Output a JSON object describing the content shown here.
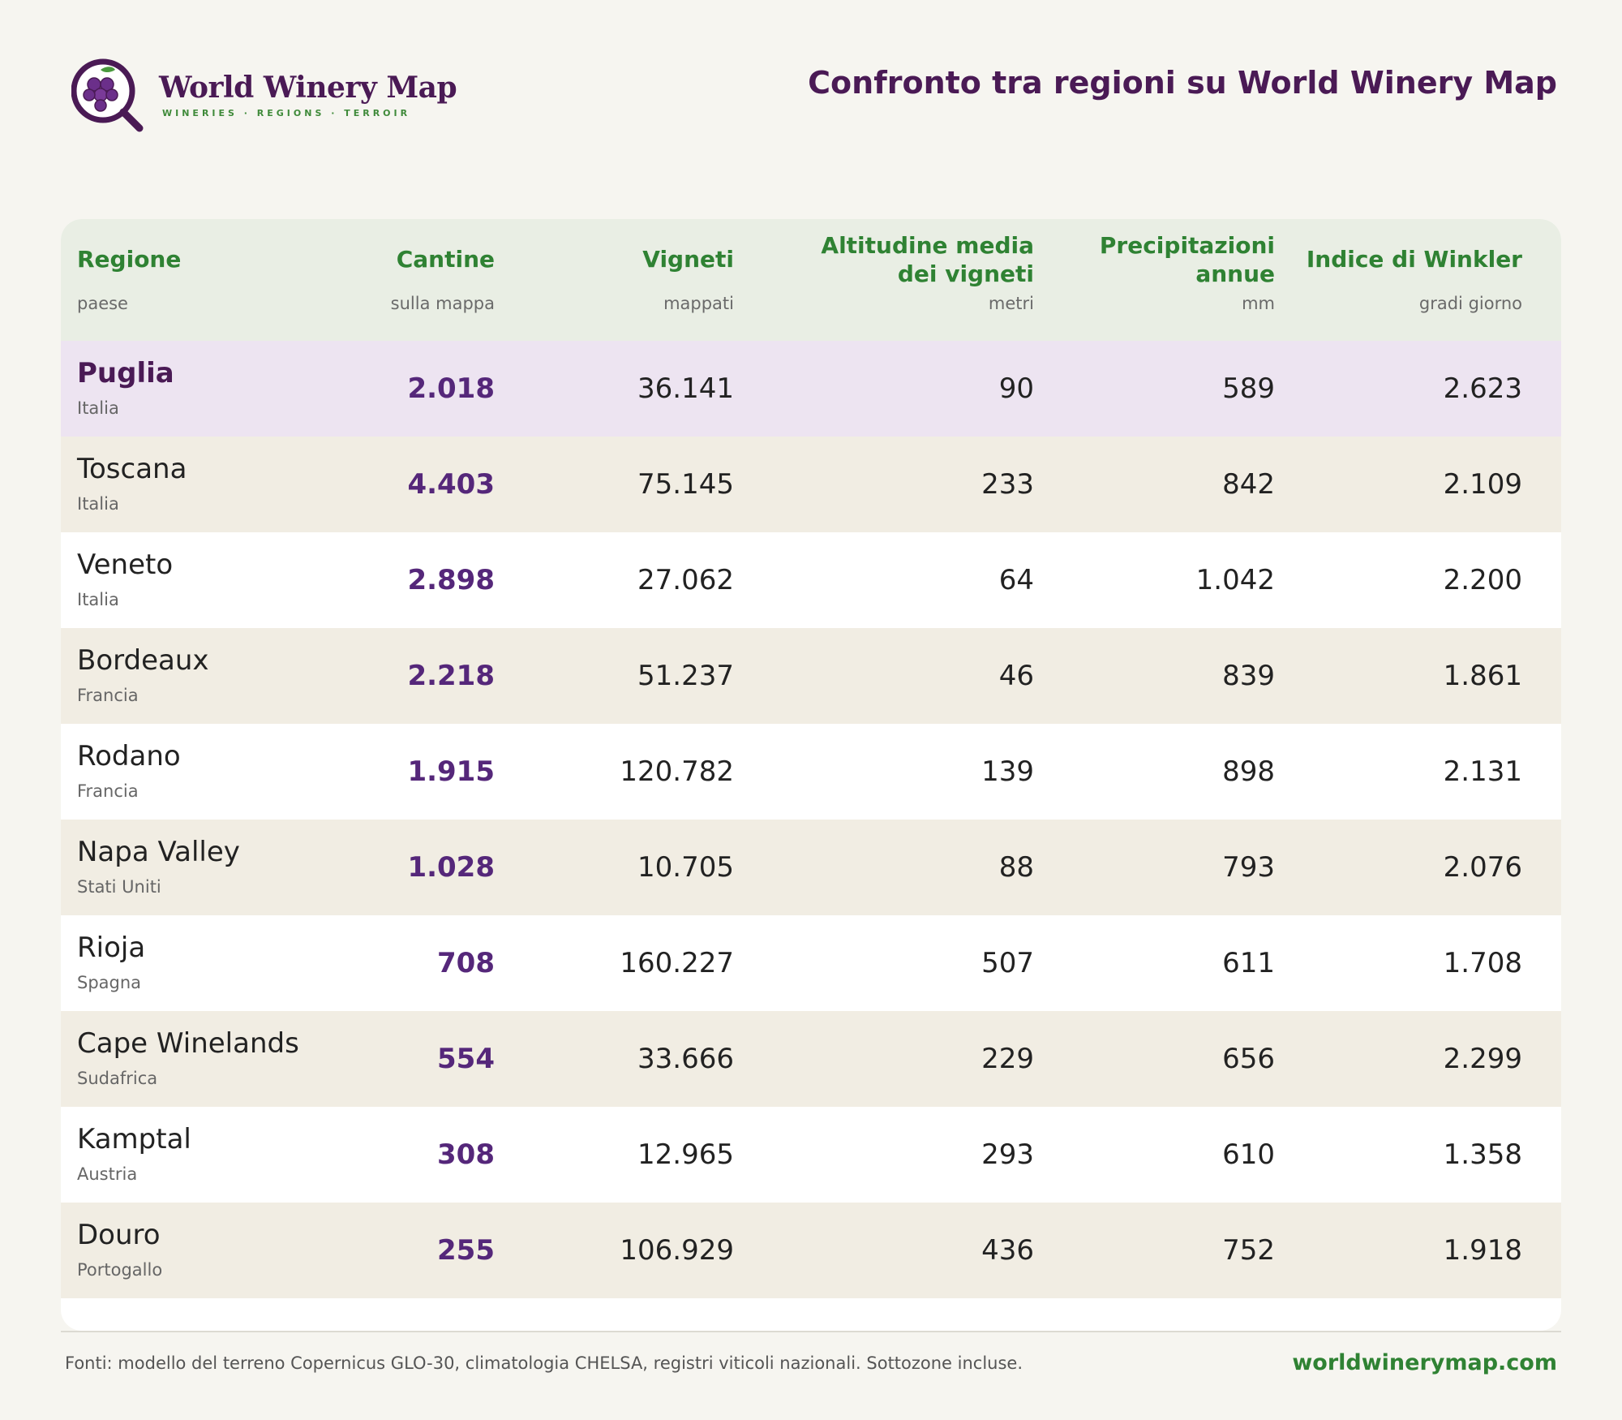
{
  "brand": {
    "name": "World Winery Map",
    "tagline": "WINERIES · REGIONS · TERROIR",
    "logo_icon": "grape-magnifier-icon",
    "colors": {
      "primary": "#4a1a55",
      "accent": "#3f8a3a",
      "grape": "#6b2f8a"
    }
  },
  "page_title": "Confronto tra regioni su World Winery Map",
  "table": {
    "columns": [
      {
        "title_line1": "Regione",
        "title_line2": "",
        "sub": "paese"
      },
      {
        "title_line1": "Cantine",
        "title_line2": "",
        "sub": "sulla mappa"
      },
      {
        "title_line1": "Vigneti",
        "title_line2": "",
        "sub": "mappati"
      },
      {
        "title_line1": "Altitudine media",
        "title_line2": "dei vigneti",
        "sub": "metri"
      },
      {
        "title_line1": "Precipitazioni",
        "title_line2": "annue",
        "sub": "mm"
      },
      {
        "title_line1": "Indice di Winkler",
        "title_line2": "",
        "sub": "gradi giorno"
      }
    ],
    "rows": [
      {
        "name": "Puglia",
        "country": "Italia",
        "cantine": "2.018",
        "vigneti": "36.141",
        "altitudine": "90",
        "precipitazioni": "589",
        "winkler": "2.623",
        "highlighted": true
      },
      {
        "name": "Toscana",
        "country": "Italia",
        "cantine": "4.403",
        "vigneti": "75.145",
        "altitudine": "233",
        "precipitazioni": "842",
        "winkler": "2.109"
      },
      {
        "name": "Veneto",
        "country": "Italia",
        "cantine": "2.898",
        "vigneti": "27.062",
        "altitudine": "64",
        "precipitazioni": "1.042",
        "winkler": "2.200"
      },
      {
        "name": "Bordeaux",
        "country": "Francia",
        "cantine": "2.218",
        "vigneti": "51.237",
        "altitudine": "46",
        "precipitazioni": "839",
        "winkler": "1.861"
      },
      {
        "name": "Rodano",
        "country": "Francia",
        "cantine": "1.915",
        "vigneti": "120.782",
        "altitudine": "139",
        "precipitazioni": "898",
        "winkler": "2.131"
      },
      {
        "name": "Napa Valley",
        "country": "Stati Uniti",
        "cantine": "1.028",
        "vigneti": "10.705",
        "altitudine": "88",
        "precipitazioni": "793",
        "winkler": "2.076"
      },
      {
        "name": "Rioja",
        "country": "Spagna",
        "cantine": "708",
        "vigneti": "160.227",
        "altitudine": "507",
        "precipitazioni": "611",
        "winkler": "1.708"
      },
      {
        "name": "Cape Winelands",
        "country": "Sudafrica",
        "cantine": "554",
        "vigneti": "33.666",
        "altitudine": "229",
        "precipitazioni": "656",
        "winkler": "2.299"
      },
      {
        "name": "Kamptal",
        "country": "Austria",
        "cantine": "308",
        "vigneti": "12.965",
        "altitudine": "293",
        "precipitazioni": "610",
        "winkler": "1.358"
      },
      {
        "name": "Douro",
        "country": "Portogallo",
        "cantine": "255",
        "vigneti": "106.929",
        "altitudine": "436",
        "precipitazioni": "752",
        "winkler": "1.918"
      }
    ]
  },
  "footer": {
    "sources": "Fonti: modello del terreno Copernicus GLO-30, climatologia CHELSA, registri viticoli nazionali. Sottozone incluse.",
    "site": "worldwinerymap.com"
  }
}
